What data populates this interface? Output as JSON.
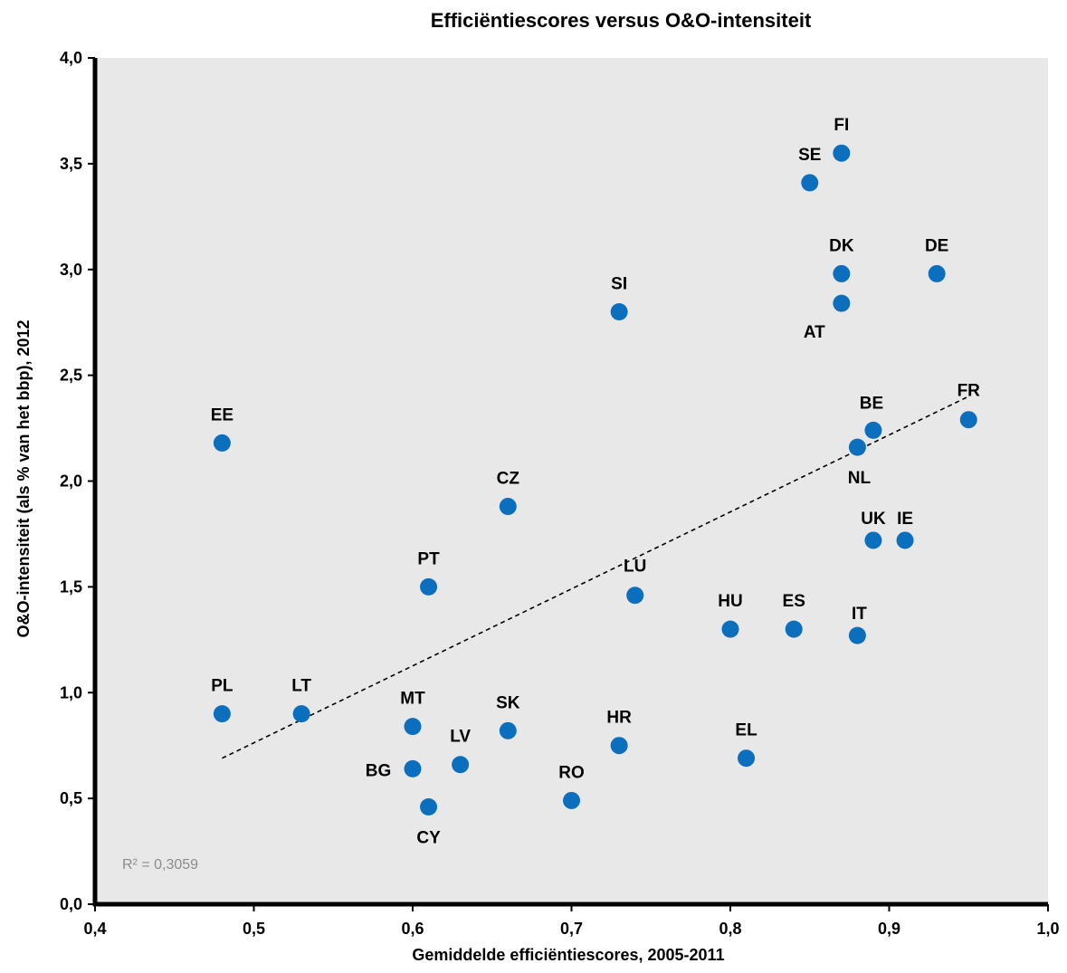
{
  "chart_data": {
    "type": "scatter",
    "title": "Efficiëntiescores versus O&O-intensiteit",
    "xlabel": "Gemiddelde efficiëntiescores, 2005-2011",
    "ylabel": "O&O-intensiteit (als % van het bbp), 2012",
    "xlim": [
      0.4,
      1.0
    ],
    "ylim": [
      0.0,
      4.0
    ],
    "x_ticks": [
      "0,4",
      "0,5",
      "0,6",
      "0,7",
      "0,8",
      "0,9",
      "1,0"
    ],
    "y_ticks": [
      "0,0",
      "0,5",
      "1,0",
      "1,5",
      "2,0",
      "2,5",
      "3,0",
      "3,5",
      "4,0"
    ],
    "grid": false,
    "point_color": "#0b6fbe",
    "plot_background": "#e8e8e8",
    "points": [
      {
        "label": "FI",
        "x": 0.87,
        "y": 3.55
      },
      {
        "label": "SE",
        "x": 0.85,
        "y": 3.41
      },
      {
        "label": "DK",
        "x": 0.87,
        "y": 2.98
      },
      {
        "label": "DE",
        "x": 0.93,
        "y": 2.98
      },
      {
        "label": "AT",
        "x": 0.87,
        "y": 2.84
      },
      {
        "label": "SI",
        "x": 0.73,
        "y": 2.8
      },
      {
        "label": "FR",
        "x": 0.95,
        "y": 2.29
      },
      {
        "label": "BE",
        "x": 0.89,
        "y": 2.24
      },
      {
        "label": "NL",
        "x": 0.88,
        "y": 2.16
      },
      {
        "label": "EE",
        "x": 0.48,
        "y": 2.18
      },
      {
        "label": "CZ",
        "x": 0.66,
        "y": 1.88
      },
      {
        "label": "UK",
        "x": 0.89,
        "y": 1.72
      },
      {
        "label": "IE",
        "x": 0.91,
        "y": 1.72
      },
      {
        "label": "PT",
        "x": 0.61,
        "y": 1.5
      },
      {
        "label": "LU",
        "x": 0.74,
        "y": 1.46
      },
      {
        "label": "HU",
        "x": 0.8,
        "y": 1.3
      },
      {
        "label": "ES",
        "x": 0.84,
        "y": 1.3
      },
      {
        "label": "IT",
        "x": 0.88,
        "y": 1.27
      },
      {
        "label": "PL",
        "x": 0.48,
        "y": 0.9
      },
      {
        "label": "LT",
        "x": 0.53,
        "y": 0.9
      },
      {
        "label": "MT",
        "x": 0.6,
        "y": 0.84
      },
      {
        "label": "SK",
        "x": 0.66,
        "y": 0.82
      },
      {
        "label": "HR",
        "x": 0.73,
        "y": 0.75
      },
      {
        "label": "EL",
        "x": 0.81,
        "y": 0.69
      },
      {
        "label": "LV",
        "x": 0.63,
        "y": 0.66
      },
      {
        "label": "BG",
        "x": 0.6,
        "y": 0.64
      },
      {
        "label": "RO",
        "x": 0.7,
        "y": 0.49
      },
      {
        "label": "CY",
        "x": 0.61,
        "y": 0.46
      }
    ],
    "trendline": {
      "x": [
        0.48,
        0.95
      ],
      "y": [
        0.69,
        2.4
      ],
      "style": "dashed"
    },
    "annotation": "R² = 0,3059"
  }
}
